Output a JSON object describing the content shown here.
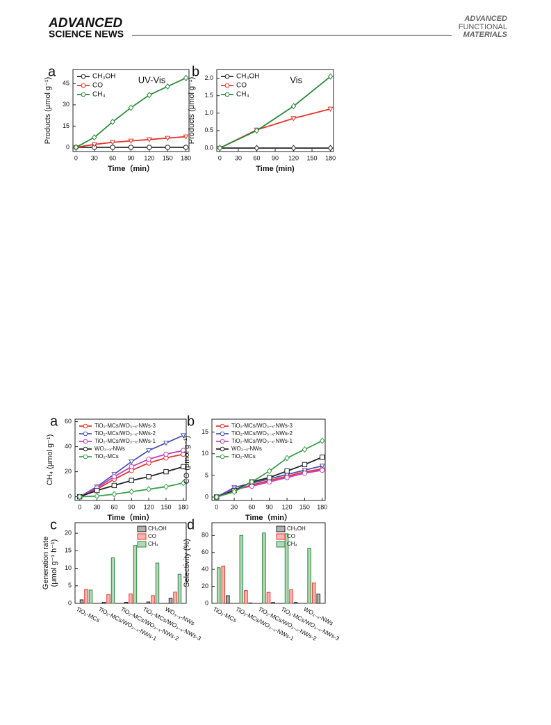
{
  "header": {
    "brand_top": "ADVANCED",
    "brand_bottom": "SCIENCE NEWS",
    "journal": [
      "ADVANCED",
      "FUNCTIONAL",
      "MATERIALS"
    ]
  },
  "chart_data": [
    {
      "type": "line",
      "label": "a",
      "annotation": "UV-Vis",
      "xlabel": "Time（min）",
      "ylabel": "Products (μmol g⁻¹)",
      "x": [
        0,
        30,
        60,
        90,
        120,
        150,
        180
      ],
      "xlim": [
        -5,
        185
      ],
      "xticks": [
        0,
        30,
        60,
        90,
        120,
        150,
        180
      ],
      "ylim": [
        -3,
        55
      ],
      "yticks": [
        0,
        15,
        30,
        45
      ],
      "legend": "upper left",
      "series": [
        {
          "name": "CH₃OH",
          "color": "#222222",
          "marker": "circle",
          "values": [
            0,
            0,
            0,
            0,
            0,
            0,
            0
          ]
        },
        {
          "name": "CO",
          "color": "#e8332a",
          "marker": "triangle",
          "values": [
            0,
            2,
            3.5,
            4.5,
            5.5,
            6.5,
            7.5
          ]
        },
        {
          "name": "CH₄",
          "color": "#2a8a3a",
          "marker": "diamond",
          "values": [
            0,
            7,
            18,
            28,
            37,
            43,
            49
          ]
        }
      ]
    },
    {
      "type": "line",
      "label": "b",
      "annotation": "Vis",
      "xlabel": "Time (min)",
      "ylabel": "Products (μmol g⁻¹)",
      "x": [
        0,
        60,
        120,
        180
      ],
      "xlim": [
        -5,
        185
      ],
      "xticks": [
        0,
        30,
        60,
        90,
        120,
        150,
        180
      ],
      "ylim": [
        -0.1,
        2.25
      ],
      "yticks": [
        {
          "value": 0,
          "label": "0.0"
        },
        0.5,
        {
          "value": 1,
          "label": "1.0"
        },
        1.5,
        {
          "value": 2,
          "label": "2.0"
        }
      ],
      "legend": "upper left",
      "series": [
        {
          "name": "CH₃OH",
          "color": "#222222",
          "marker": "diamond",
          "values": [
            0,
            0,
            0,
            0
          ]
        },
        {
          "name": "CO",
          "color": "#e8332a",
          "marker": "triangle",
          "values": [
            0,
            0.52,
            0.85,
            1.12
          ]
        },
        {
          "name": "CH₄",
          "color": "#2a8a3a",
          "marker": "diamond",
          "values": [
            0,
            0.5,
            1.2,
            2.05
          ]
        }
      ]
    },
    {
      "type": "line",
      "label": "a",
      "xlabel": "Time（min）",
      "ylabel": "CH₄ (μmol g⁻¹)",
      "x": [
        0,
        30,
        60,
        90,
        120,
        150,
        180
      ],
      "xlim": [
        -8,
        185
      ],
      "xticks": [
        0,
        30,
        60,
        90,
        120,
        150,
        180
      ],
      "ylim": [
        -3,
        62
      ],
      "yticks": [
        0,
        20,
        40,
        60
      ],
      "legend": "upper left",
      "series": [
        {
          "name": "TiO₂-MCs/WO₃₋ₓ-NWs-3",
          "color": "#e8332a",
          "marker": "circle",
          "values": [
            0,
            6,
            14,
            21,
            27,
            31,
            34
          ]
        },
        {
          "name": "TiO₂-MCs/WO₃₋ₓ-NWs-2",
          "color": "#4a52b0",
          "marker": "triangle",
          "values": [
            0,
            8,
            18,
            28,
            37,
            43,
            49
          ]
        },
        {
          "name": "TiO₂-MCs/WO₃₋ₓ-NWs-1",
          "color": "#c040c0",
          "marker": "circle",
          "values": [
            0,
            7,
            16,
            24,
            30,
            34,
            37
          ]
        },
        {
          "name": "WO₃₋ₓ-NWs",
          "color": "#222222",
          "marker": "square",
          "values": [
            0,
            5,
            9,
            13,
            16,
            20,
            24
          ]
        },
        {
          "name": "TiO₂-MCs",
          "color": "#3aa04a",
          "marker": "diamond",
          "values": [
            0,
            0.5,
            2,
            4,
            6,
            8,
            11
          ]
        }
      ]
    },
    {
      "type": "line",
      "label": "b",
      "xlabel": "Time（min）",
      "ylabel": "CO (μmol g⁻¹)",
      "x": [
        0,
        30,
        60,
        90,
        120,
        150,
        180
      ],
      "xlim": [
        -8,
        185
      ],
      "xticks": [
        0,
        30,
        60,
        90,
        120,
        150,
        180
      ],
      "ylim": [
        -0.8,
        18
      ],
      "yticks": [
        0,
        5,
        10,
        15
      ],
      "legend": "upper left",
      "series": [
        {
          "name": "TiO₂-MCs/WO₃₋ₓ-NWs-3",
          "color": "#e8332a",
          "marker": "circle",
          "values": [
            0,
            1.5,
            2.8,
            3.8,
            4.8,
            5.8,
            6.5
          ]
        },
        {
          "name": "TiO₂-MCs/WO₃₋ₓ-NWs-2",
          "color": "#4a52b0",
          "marker": "triangle",
          "values": [
            0,
            2.2,
            3.2,
            4.2,
            5.2,
            6.2,
            7.2
          ]
        },
        {
          "name": "TiO₂-MCs/WO₃₋ₓ-NWs-1",
          "color": "#c040c0",
          "marker": "circle",
          "values": [
            0,
            1.8,
            2.5,
            3.5,
            4.5,
            5.5,
            6.2
          ]
        },
        {
          "name": "WO₃₋ₓ-NWs",
          "color": "#222222",
          "marker": "square",
          "values": [
            0,
            1.5,
            3.5,
            4.5,
            6,
            7.5,
            9.2
          ]
        },
        {
          "name": "TiO₂-MCs",
          "color": "#3aa04a",
          "marker": "diamond",
          "values": [
            0,
            1.2,
            3.5,
            6,
            9,
            11,
            13
          ]
        }
      ]
    },
    {
      "type": "bar",
      "label": "c",
      "ylabel": [
        "Generation rate",
        "(μmol g⁻¹ h⁻¹)"
      ],
      "categories": [
        "TiO₂-MCs",
        "TiO₂-MCs/WO₃₋ₓ-NWs-1",
        "TiO₂-MCs/WO₃₋ₓ-NWs-2",
        "TiO₂-MCs/WO₃₋ₓ-NWs-3",
        "WO₃₋ₓ-NWs"
      ],
      "ylim": [
        0,
        23
      ],
      "yticks": [
        0,
        5,
        10,
        15,
        20
      ],
      "legend": "upper right",
      "reverse_bars": false,
      "series": [
        {
          "name": "CH₃OH",
          "color": "#222222",
          "values": [
            1,
            0.3,
            0.3,
            0.4,
            1.5
          ]
        },
        {
          "name": "CO",
          "color": "#e8332a",
          "values": [
            4,
            2.5,
            2.7,
            2.2,
            3.2
          ]
        },
        {
          "name": "CH₄",
          "color": "#2a8a3a",
          "values": [
            3.8,
            13,
            16.5,
            11.5,
            8.3
          ]
        }
      ]
    },
    {
      "type": "bar",
      "label": "d",
      "ylabel": [
        "Selectivity (%)"
      ],
      "categories": [
        "TiO₂-MCs",
        "TiO₂-MCs/WO₃₋ₓ-NWs-1",
        "TiO₂-MCs/WO₃₋ₓ-NWs-2",
        "TiO₂-MCs/WO₃₋ₓ-NWs-3",
        "WO₃₋ₓ-NWs"
      ],
      "ylim": [
        0,
        95
      ],
      "yticks": [
        0,
        20,
        40,
        60,
        80
      ],
      "legend": "upper right",
      "reverse_bars": true,
      "series": [
        {
          "name": "CH₃OH",
          "color": "#222222",
          "values": [
            9,
            0.5,
            1,
            1,
            11
          ]
        },
        {
          "name": "CO",
          "color": "#e8332a",
          "values": [
            44,
            15,
            13,
            16,
            24
          ]
        },
        {
          "name": "CH₄",
          "color": "#2a8a3a",
          "values": [
            42,
            80,
            83,
            82,
            65
          ]
        }
      ]
    }
  ]
}
